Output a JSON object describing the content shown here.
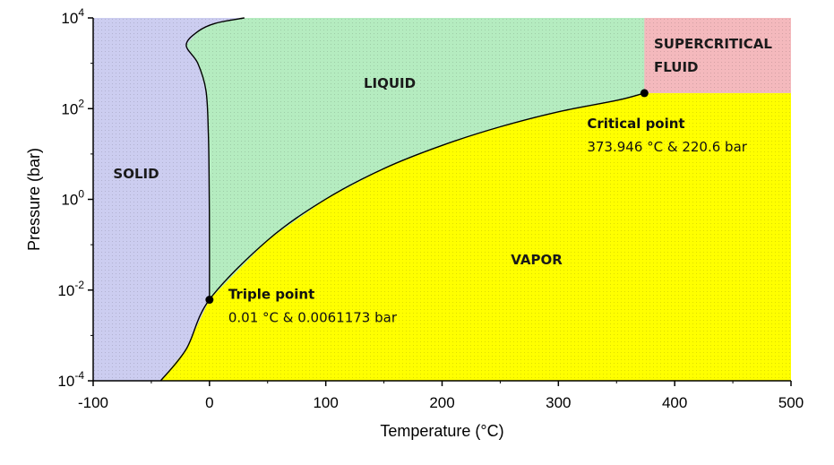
{
  "chart_data": {
    "type": "area",
    "title": "",
    "xlabel": "Temperature (°C)",
    "ylabel": "Pressure (bar)",
    "xlim": [
      -100,
      500
    ],
    "ylim_log10": [
      -4,
      4
    ],
    "y_scale": "log",
    "x_ticks": [
      "-100",
      "0",
      "100",
      "200",
      "300",
      "400",
      "500"
    ],
    "y_ticks": [
      {
        "base": "10",
        "exp": "-4"
      },
      {
        "base": "10",
        "exp": "-2"
      },
      {
        "base": "10",
        "exp": "0"
      },
      {
        "base": "10",
        "exp": "2"
      },
      {
        "base": "10",
        "exp": "4"
      }
    ],
    "regions": [
      {
        "name": "SOLID",
        "color": "#cccdf0"
      },
      {
        "name": "LIQUID",
        "color": "#b5ecc0"
      },
      {
        "name": "VAPOR",
        "color": "#ffff00"
      },
      {
        "name": "SUPERCRITICAL FLUID",
        "color": "#f4b9bd"
      }
    ],
    "region_labels": {
      "solid": "SOLID",
      "liquid": "LIQUID",
      "vapor": "VAPOR",
      "supercritical_line1": "SUPERCRITICAL",
      "supercritical_line2": "FLUID"
    },
    "series": [
      {
        "type": "curve",
        "points": [
          [
            -42,
            -4.0
          ],
          [
            -20,
            -3.3
          ],
          [
            0,
            -2.21
          ],
          [
            50,
            -0.9
          ],
          [
            100,
            0.006
          ],
          [
            150,
            0.68
          ],
          [
            200,
            1.19
          ],
          [
            250,
            1.6
          ],
          [
            300,
            1.93
          ],
          [
            350,
            2.18
          ],
          [
            373.946,
            2.343
          ]
        ]
      },
      {
        "type": "curve",
        "points": [
          [
            0.01,
            -2.213
          ],
          [
            0,
            -1.0
          ],
          [
            -0.3,
            0.5
          ],
          [
            -1,
            1.5
          ],
          [
            -3,
            2.4
          ],
          [
            -10,
            3.0
          ],
          [
            -20,
            3.4
          ],
          [
            -10,
            3.7
          ],
          [
            5,
            3.88
          ],
          [
            30,
            4.0
          ]
        ]
      }
    ],
    "annotations": [
      {
        "title": "Triple point",
        "text": "0.01 °C & 0.0061173 bar",
        "x": 0.01,
        "y_log10": -2.213
      },
      {
        "title": "Critical point",
        "text": "373.946 °C & 220.6 bar",
        "x": 373.946,
        "y_log10": 2.343
      }
    ]
  }
}
